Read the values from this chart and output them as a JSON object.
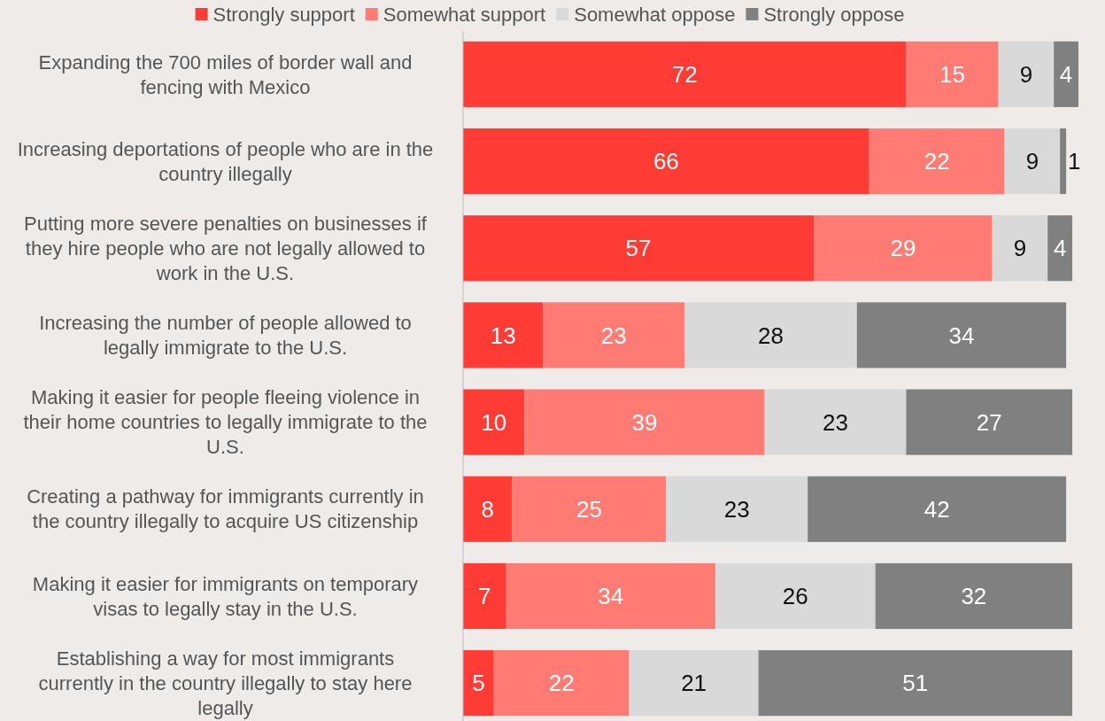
{
  "chart_data": {
    "type": "bar",
    "orientation": "horizontal",
    "stacked": true,
    "data_labels": true,
    "legend": "top",
    "tick_labels": "y",
    "xlim": [
      0,
      100
    ],
    "categories": [
      "Expanding the 700 miles of border wall and fencing with Mexico",
      "Increasing deportations of people who are in the country illegally",
      "Putting more severe penalties on businesses if they hire people who are not legally allowed to work in the U.S.",
      "Increasing the number of people allowed to legally immigrate to the U.S.",
      "Making it easier for people fleeing violence in their home countries to legally immigrate to the U.S.",
      "Creating a pathway for immigrants currently in the country illegally to acquire US citizenship",
      "Making it easier for immigrants on temporary visas to legally stay in the U.S.",
      "Establishing a way for most immigrants currently in the country illegally to stay here legally"
    ],
    "series": [
      {
        "name": "Strongly support",
        "color": "#ff3b35",
        "values": [
          72,
          66,
          57,
          13,
          10,
          8,
          7,
          5
        ]
      },
      {
        "name": "Somewhat support",
        "color": "#ff7b73",
        "values": [
          15,
          22,
          29,
          23,
          39,
          25,
          34,
          22
        ]
      },
      {
        "name": "Somewhat oppose",
        "color": "#d9d9d9",
        "values": [
          9,
          9,
          9,
          28,
          23,
          23,
          26,
          21
        ]
      },
      {
        "name": "Strongly oppose",
        "color": "#808080",
        "values": [
          4,
          1,
          4,
          34,
          27,
          42,
          32,
          51
        ]
      }
    ]
  }
}
